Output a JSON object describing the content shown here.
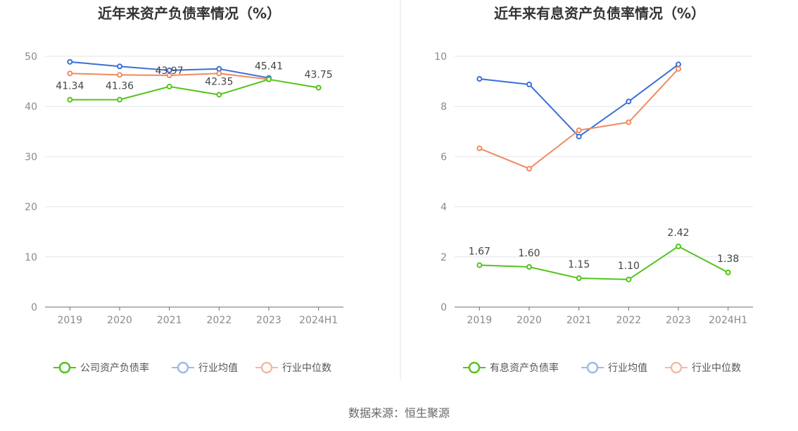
{
  "source": "数据来源：恒生聚源",
  "colors": {
    "company": "#52c41a",
    "avg": "#3a6fd8",
    "median": "#f08a5d"
  },
  "chart_data": [
    {
      "type": "line",
      "title": "近年来资产负债率情况（%）",
      "categories": [
        "2019",
        "2020",
        "2021",
        "2022",
        "2023",
        "2024H1"
      ],
      "ylim": [
        0,
        50
      ],
      "yticks": [
        "0",
        "10",
        "20",
        "30",
        "40",
        "50"
      ],
      "legend_position": "bottom",
      "series": [
        {
          "name": "公司资产负债率",
          "key": "company",
          "values": [
            41.34,
            41.36,
            43.97,
            42.35,
            45.41,
            43.75
          ],
          "labels": [
            "41.34",
            "41.36",
            "43.97",
            "42.35",
            "45.41",
            "43.75"
          ]
        },
        {
          "name": "行业均值",
          "key": "avg",
          "values": [
            48.9,
            48.0,
            47.2,
            47.5,
            45.7,
            null
          ]
        },
        {
          "name": "行业中位数",
          "key": "median",
          "values": [
            46.6,
            46.3,
            46.2,
            46.6,
            45.4,
            null
          ]
        }
      ]
    },
    {
      "type": "line",
      "title": "近年来有息资产负债率情况（%）",
      "categories": [
        "2019",
        "2020",
        "2021",
        "2022",
        "2023",
        "2024H1"
      ],
      "ylim": [
        0,
        10
      ],
      "yticks": [
        "0",
        "2",
        "4",
        "6",
        "8",
        "10"
      ],
      "legend_position": "bottom",
      "series": [
        {
          "name": "有息资产负债率",
          "key": "company",
          "values": [
            1.67,
            1.6,
            1.15,
            1.1,
            2.42,
            1.38
          ],
          "labels": [
            "1.67",
            "1.60",
            "1.15",
            "1.10",
            "2.42",
            "1.38"
          ]
        },
        {
          "name": "行业均值",
          "key": "avg",
          "values": [
            9.1,
            8.88,
            6.8,
            8.2,
            9.68,
            null
          ]
        },
        {
          "name": "行业中位数",
          "key": "median",
          "values": [
            6.33,
            5.52,
            7.05,
            7.37,
            9.5,
            null
          ]
        }
      ]
    }
  ]
}
